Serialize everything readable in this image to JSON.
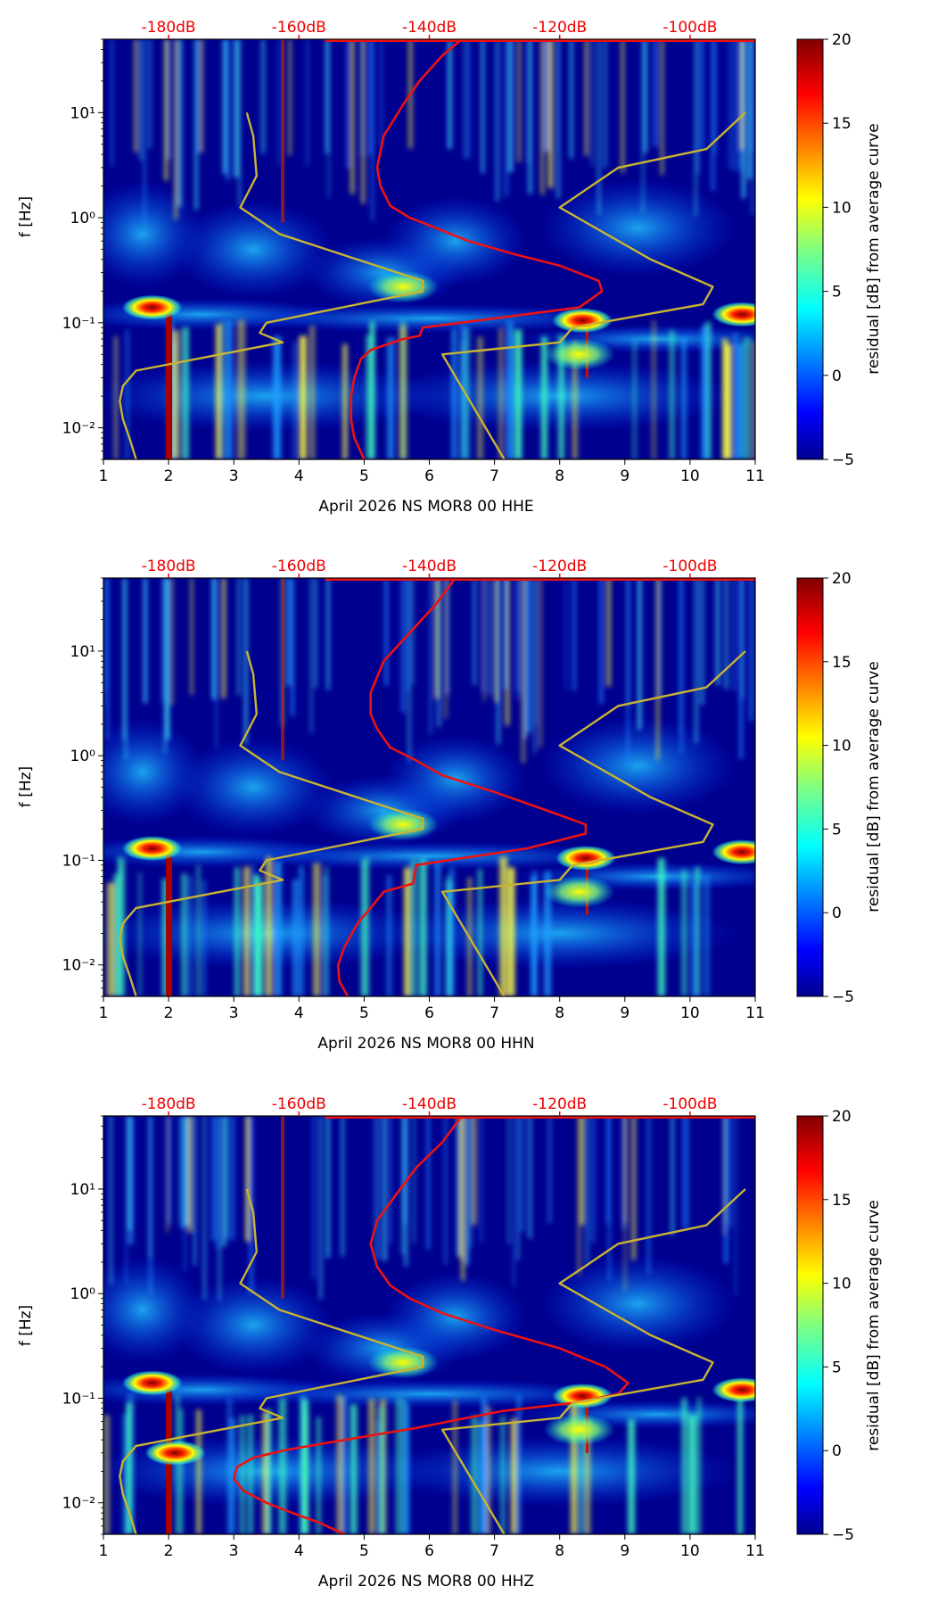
{
  "colorbar": {
    "label": "residual [dB] from average curve",
    "min": -5,
    "max": 20,
    "ticks": [
      -5,
      0,
      5,
      10,
      15,
      20
    ],
    "colormap": "jet"
  },
  "colors": {
    "median_curve": "#ee1111",
    "noise_model": "#c8b432",
    "top_labels": "#ee0000",
    "background": "#00008f"
  },
  "chart_data": [
    {
      "type": "heatmap",
      "xlabel": "April 2026 NS MOR8 00 HHE",
      "ylabel": "f [Hz]",
      "xlim": [
        1,
        11
      ],
      "x_ticks": [
        1,
        2,
        3,
        4,
        5,
        6,
        7,
        8,
        9,
        10,
        11
      ],
      "ylim": [
        0.005,
        50
      ],
      "y_scale": "log",
      "y_ticks": [
        0.01,
        0.1,
        1,
        10
      ],
      "y_tick_labels": [
        "10⁻²",
        "10⁻¹",
        "10⁰",
        "10¹"
      ],
      "top_axis_labels": [
        {
          "label": "-180dB",
          "x": 2
        },
        {
          "label": "-160dB",
          "x": 4
        },
        {
          "label": "-140dB",
          "x": 6
        },
        {
          "label": "-120dB",
          "x": 8
        },
        {
          "label": "-100dB",
          "x": 10
        }
      ],
      "hotspots": [
        {
          "x": 1.75,
          "f": 0.14,
          "value": 20
        },
        {
          "x": 8.35,
          "f": 0.105,
          "value": 20
        },
        {
          "x": 8.3,
          "f": 0.05,
          "value": 10
        },
        {
          "x": 5.6,
          "f": 0.22,
          "value": 10
        },
        {
          "x": 10.8,
          "f": 0.12,
          "value": 15
        }
      ],
      "series": [
        {
          "x": [
            5.0,
            4.85,
            4.8,
            4.8,
            4.85,
            4.95,
            5.1,
            5.6,
            5.85,
            5.9,
            7.0,
            8.3,
            8.65,
            8.6,
            8.0,
            7.3,
            6.6,
            6.1,
            5.7,
            5.4,
            5.25,
            5.2,
            5.3,
            5.6,
            5.85,
            6.2,
            6.5
          ],
          "y": [
            0.005,
            0.008,
            0.012,
            0.02,
            0.03,
            0.045,
            0.055,
            0.07,
            0.075,
            0.09,
            0.11,
            0.14,
            0.2,
            0.25,
            0.35,
            0.45,
            0.6,
            0.8,
            1.0,
            1.3,
            2.0,
            3.0,
            6.0,
            12.0,
            20.0,
            35.0,
            50.0
          ]
        },
        {
          "x": [
            1.5,
            1.4,
            1.3,
            1.25,
            1.3,
            1.5,
            3.75,
            3.4,
            3.5,
            5.9,
            5.9,
            3.7,
            3.1,
            3.35,
            3.3,
            3.2
          ],
          "y": [
            0.005,
            0.008,
            0.012,
            0.018,
            0.025,
            0.035,
            0.065,
            0.08,
            0.1,
            0.2,
            0.25,
            0.7,
            1.25,
            2.5,
            6.0,
            10.0
          ]
        },
        {
          "x": [
            7.15,
            6.2,
            8.0,
            8.2,
            10.2,
            10.35,
            9.4,
            8.0,
            8.9,
            10.25,
            10.85
          ],
          "y": [
            0.005,
            0.05,
            0.065,
            0.09,
            0.15,
            0.22,
            0.4,
            1.25,
            3.0,
            4.5,
            10.0
          ]
        }
      ]
    },
    {
      "type": "heatmap",
      "xlabel": "April 2026 NS MOR8 00 HHN",
      "ylabel": "f [Hz]",
      "xlim": [
        1,
        11
      ],
      "x_ticks": [
        1,
        2,
        3,
        4,
        5,
        6,
        7,
        8,
        9,
        10,
        11
      ],
      "ylim": [
        0.005,
        50
      ],
      "y_scale": "log",
      "y_ticks": [
        0.01,
        0.1,
        1,
        10
      ],
      "y_tick_labels": [
        "10⁻²",
        "10⁻¹",
        "10⁰",
        "10¹"
      ],
      "top_axis_labels": [
        {
          "label": "-180dB",
          "x": 2
        },
        {
          "label": "-160dB",
          "x": 4
        },
        {
          "label": "-140dB",
          "x": 6
        },
        {
          "label": "-120dB",
          "x": 8
        },
        {
          "label": "-100dB",
          "x": 10
        }
      ],
      "hotspots": [
        {
          "x": 1.75,
          "f": 0.13,
          "value": 20
        },
        {
          "x": 8.4,
          "f": 0.105,
          "value": 20
        },
        {
          "x": 8.3,
          "f": 0.05,
          "value": 10
        },
        {
          "x": 5.6,
          "f": 0.22,
          "value": 10
        },
        {
          "x": 10.8,
          "f": 0.12,
          "value": 15
        }
      ],
      "series": [
        {
          "x": [
            4.75,
            4.62,
            4.6,
            4.7,
            4.9,
            5.1,
            5.3,
            5.75,
            5.8,
            7.5,
            8.4,
            8.4,
            7.8,
            7.0,
            6.2,
            5.8,
            5.4,
            5.2,
            5.1,
            5.1,
            5.3,
            5.7,
            6.1,
            6.4
          ],
          "y": [
            0.005,
            0.007,
            0.01,
            0.015,
            0.025,
            0.035,
            0.05,
            0.06,
            0.09,
            0.13,
            0.18,
            0.22,
            0.3,
            0.45,
            0.65,
            0.9,
            1.2,
            1.8,
            2.5,
            4.0,
            8.0,
            15.0,
            28.0,
            50.0
          ]
        },
        {
          "x": [
            1.5,
            1.4,
            1.3,
            1.25,
            1.3,
            1.5,
            3.75,
            3.4,
            3.5,
            5.9,
            5.9,
            3.7,
            3.1,
            3.35,
            3.3,
            3.2
          ],
          "y": [
            0.005,
            0.008,
            0.012,
            0.018,
            0.025,
            0.035,
            0.065,
            0.08,
            0.1,
            0.2,
            0.25,
            0.7,
            1.25,
            2.5,
            6.0,
            10.0
          ]
        },
        {
          "x": [
            7.15,
            6.2,
            8.0,
            8.2,
            10.2,
            10.35,
            9.4,
            8.0,
            8.9,
            10.25,
            10.85
          ],
          "y": [
            0.005,
            0.05,
            0.065,
            0.09,
            0.15,
            0.22,
            0.4,
            1.25,
            3.0,
            4.5,
            10.0
          ]
        }
      ]
    },
    {
      "type": "heatmap",
      "xlabel": "April 2026 NS MOR8 00 HHZ",
      "ylabel": "f [Hz]",
      "xlim": [
        1,
        11
      ],
      "x_ticks": [
        1,
        2,
        3,
        4,
        5,
        6,
        7,
        8,
        9,
        10,
        11
      ],
      "ylim": [
        0.005,
        50
      ],
      "y_scale": "log",
      "y_ticks": [
        0.01,
        0.1,
        1,
        10
      ],
      "y_tick_labels": [
        "10⁻²",
        "10⁻¹",
        "10⁰",
        "10¹"
      ],
      "top_axis_labels": [
        {
          "label": "-180dB",
          "x": 2
        },
        {
          "label": "-160dB",
          "x": 4
        },
        {
          "label": "-140dB",
          "x": 6
        },
        {
          "label": "-120dB",
          "x": 8
        },
        {
          "label": "-100dB",
          "x": 10
        }
      ],
      "hotspots": [
        {
          "x": 1.75,
          "f": 0.14,
          "value": 20
        },
        {
          "x": 8.35,
          "f": 0.105,
          "value": 20
        },
        {
          "x": 8.3,
          "f": 0.05,
          "value": 10
        },
        {
          "x": 5.6,
          "f": 0.22,
          "value": 10
        },
        {
          "x": 2.1,
          "f": 0.03,
          "value": 20
        },
        {
          "x": 10.8,
          "f": 0.12,
          "value": 15
        }
      ],
      "series": [
        {
          "x": [
            4.7,
            4.3,
            3.9,
            3.5,
            3.15,
            3.0,
            3.05,
            3.3,
            3.8,
            4.5,
            5.2,
            5.8,
            6.3,
            7.1,
            8.2,
            8.9,
            9.05,
            8.7,
            8.0,
            7.0,
            6.2,
            5.7,
            5.4,
            5.2,
            5.1,
            5.2,
            5.5,
            5.8,
            6.2,
            6.5
          ],
          "y": [
            0.005,
            0.0065,
            0.008,
            0.01,
            0.013,
            0.017,
            0.022,
            0.027,
            0.032,
            0.038,
            0.045,
            0.052,
            0.06,
            0.075,
            0.09,
            0.11,
            0.14,
            0.2,
            0.3,
            0.45,
            0.65,
            0.9,
            1.2,
            1.8,
            3.0,
            5.0,
            9.0,
            16.0,
            28.0,
            50.0
          ]
        },
        {
          "x": [
            1.5,
            1.4,
            1.3,
            1.25,
            1.3,
            1.5,
            3.75,
            3.4,
            3.5,
            5.9,
            5.9,
            3.7,
            3.1,
            3.35,
            3.3,
            3.2
          ],
          "y": [
            0.005,
            0.008,
            0.012,
            0.018,
            0.025,
            0.035,
            0.065,
            0.08,
            0.1,
            0.2,
            0.25,
            0.7,
            1.25,
            2.5,
            6.0,
            10.0
          ]
        },
        {
          "x": [
            7.15,
            6.2,
            8.0,
            8.2,
            10.2,
            10.35,
            9.4,
            8.0,
            8.9,
            10.25,
            10.85
          ],
          "y": [
            0.005,
            0.05,
            0.065,
            0.09,
            0.15,
            0.22,
            0.4,
            1.25,
            3.0,
            4.5,
            10.0
          ]
        }
      ]
    }
  ]
}
